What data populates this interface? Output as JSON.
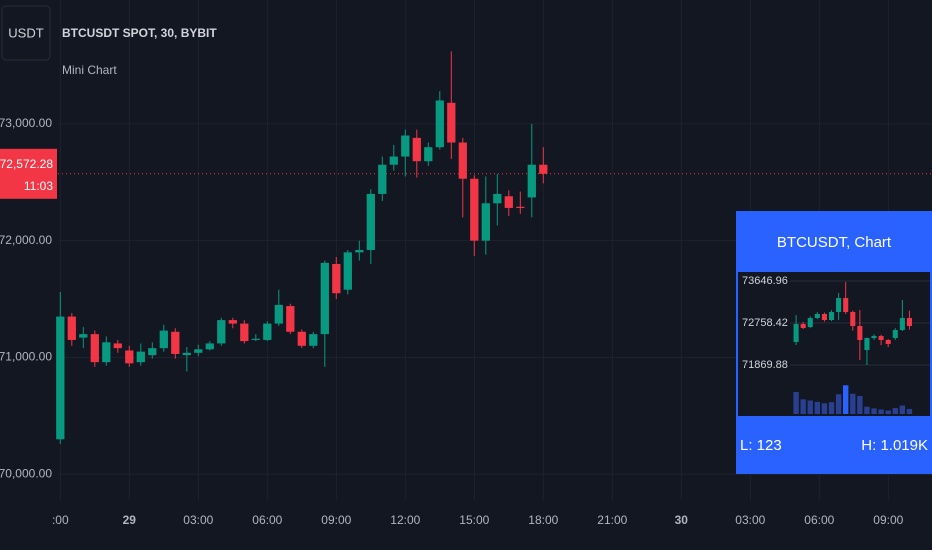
{
  "header": {
    "currency": "USDT",
    "symbol": "BTCUSDT SPOT, 30, BYBIT",
    "indicator": "Mini Chart"
  },
  "chart_data": [
    {
      "type": "candlestick",
      "x": [
        0,
        1,
        2,
        3,
        4,
        5,
        6,
        7,
        8,
        9,
        10,
        11,
        12,
        13,
        14,
        15,
        16,
        17,
        18,
        19,
        20,
        21,
        22,
        23,
        24,
        25,
        26,
        27,
        28,
        29,
        30,
        31,
        32,
        33,
        34,
        35,
        36,
        37,
        38,
        39,
        40,
        41,
        42
      ],
      "open": [
        70300,
        71350,
        71170,
        71200,
        70960,
        71120,
        71060,
        70960,
        71020,
        71080,
        71220,
        71020,
        71040,
        71070,
        71120,
        71320,
        71290,
        71150,
        71150,
        71290,
        71440,
        71220,
        71100,
        71200,
        71800,
        71580,
        71900,
        71920,
        72400,
        72650,
        72720,
        72880,
        72680,
        72800,
        73180,
        72840,
        72530,
        72000,
        72320,
        72380,
        72290,
        72370,
        72650
      ],
      "high": [
        71560,
        71380,
        71260,
        71230,
        71180,
        71150,
        71100,
        71120,
        71130,
        71280,
        71250,
        71090,
        71110,
        71140,
        71340,
        71340,
        71320,
        71200,
        71310,
        71580,
        71460,
        71240,
        71220,
        71830,
        71860,
        71920,
        72000,
        72440,
        72720,
        72820,
        72950,
        72950,
        72840,
        73280,
        73620,
        72880,
        72560,
        72550,
        72570,
        72430,
        72420,
        73000,
        72800
      ],
      "low": [
        70260,
        71100,
        71080,
        70920,
        70930,
        71040,
        70920,
        70930,
        70990,
        71050,
        70990,
        70880,
        71010,
        71060,
        71100,
        71250,
        71120,
        71140,
        71140,
        71270,
        71200,
        71080,
        71080,
        70920,
        71500,
        71540,
        71830,
        71800,
        72340,
        72600,
        72550,
        72540,
        72640,
        72780,
        72700,
        72200,
        71870,
        71880,
        72130,
        72210,
        72230,
        72200,
        72490
      ],
      "close": [
        71350,
        71150,
        71200,
        70960,
        71130,
        71080,
        70950,
        71050,
        71080,
        71230,
        71030,
        71040,
        71070,
        71120,
        71320,
        71290,
        71140,
        71160,
        71290,
        71450,
        71220,
        71100,
        71200,
        71810,
        71550,
        71900,
        71920,
        72400,
        72650,
        72720,
        72900,
        72680,
        72800,
        73200,
        72840,
        72530,
        72000,
        72320,
        72400,
        72280,
        72280,
        72650,
        72572.28
      ],
      "up_color": "#089981",
      "down_color": "#f23645",
      "xlim": [
        -0.2,
        75.8
      ],
      "ylim": [
        69780,
        74060
      ],
      "xticks": [
        {
          "value": 0,
          "label": ":00"
        },
        {
          "value": 6,
          "label": "29"
        },
        {
          "value": 12,
          "label": "03:00"
        },
        {
          "value": 18,
          "label": "06:00"
        },
        {
          "value": 24,
          "label": "09:00"
        },
        {
          "value": 30,
          "label": "12:00"
        },
        {
          "value": 36,
          "label": "15:00"
        },
        {
          "value": 42,
          "label": "18:00"
        },
        {
          "value": 48,
          "label": "21:00"
        },
        {
          "value": 54,
          "label": "30"
        },
        {
          "value": 60,
          "label": "03:00"
        },
        {
          "value": 66,
          "label": "06:00"
        },
        {
          "value": 72,
          "label": "09:00"
        }
      ],
      "yticks": [
        {
          "value": 70000,
          "label": "70,000.00"
        },
        {
          "value": 71000,
          "label": "71,000.00"
        },
        {
          "value": 72000,
          "label": "72,000.00"
        },
        {
          "value": 73000,
          "label": "73,000.00"
        }
      ],
      "grid": true,
      "last_price": {
        "value": 72572.28,
        "label": "72,572.28"
      },
      "countdown": "11:03"
    },
    {
      "type": "candlestick",
      "title": "BTCUSDT, Chart",
      "x": [
        0,
        1,
        2,
        3,
        4,
        5,
        6,
        7,
        8,
        9,
        10,
        11,
        12,
        13,
        14,
        15,
        16
      ],
      "open": [
        72357,
        72737,
        72674,
        72864,
        72949,
        72822,
        72991,
        73287,
        72991,
        72695,
        72187,
        72441,
        72483,
        72399,
        72441,
        72610,
        72864
      ],
      "high": [
        72928,
        72780,
        72900,
        72990,
        72980,
        73030,
        73393,
        73626,
        73020,
        73033,
        72450,
        72520,
        72510,
        72420,
        72650,
        73245,
        73020
      ],
      "low": [
        72293,
        72630,
        72650,
        72840,
        72790,
        72800,
        72822,
        72950,
        72600,
        71976,
        71870,
        72400,
        72290,
        72250,
        72400,
        72590,
        72620
      ],
      "close": [
        72737,
        72653,
        72864,
        72949,
        72822,
        72991,
        73287,
        72991,
        72695,
        72399,
        72441,
        72483,
        72399,
        72314,
        72610,
        72864,
        72695
      ],
      "up_color": "#089981",
      "down_color": "#f23645",
      "xlim": [
        -8.2,
        18.9
      ],
      "ylim": [
        71553,
        73774
      ],
      "yticks": [
        73646.96,
        72758.42,
        71869.88
      ],
      "grid": true,
      "volume": [
        780,
        520,
        480,
        430,
        380,
        420,
        700,
        1019,
        720,
        640,
        260,
        200,
        160,
        123,
        210,
        300,
        180
      ],
      "volume_ylim": [
        0,
        1100
      ],
      "volume_color": "#2a3f8f",
      "volume_peak_color": "#2962ff",
      "volume_range": [
        123,
        1019
      ],
      "volume_range_labels": [
        "L: 123",
        "H: 1.019K"
      ]
    }
  ]
}
